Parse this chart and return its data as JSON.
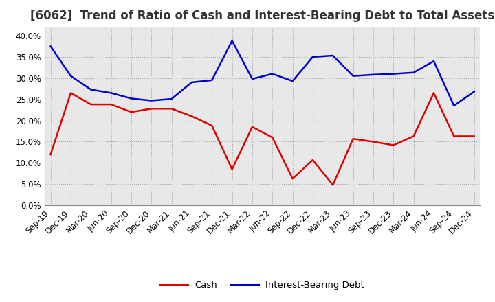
{
  "title": "[6062]  Trend of Ratio of Cash and Interest-Bearing Debt to Total Assets",
  "x_labels": [
    "Sep-19",
    "Dec-19",
    "Mar-20",
    "Jun-20",
    "Sep-20",
    "Dec-20",
    "Mar-21",
    "Jun-21",
    "Sep-21",
    "Dec-21",
    "Mar-22",
    "Jun-22",
    "Sep-22",
    "Dec-22",
    "Mar-23",
    "Jun-23",
    "Sep-23",
    "Dec-23",
    "Mar-24",
    "Jun-24",
    "Sep-24",
    "Dec-24"
  ],
  "cash": [
    0.12,
    0.265,
    0.238,
    0.238,
    0.22,
    0.228,
    0.228,
    0.21,
    0.188,
    0.085,
    0.185,
    0.16,
    0.063,
    0.107,
    0.048,
    0.157,
    0.15,
    0.142,
    0.163,
    0.265,
    0.163,
    0.163
  ],
  "ibd": [
    0.375,
    0.305,
    0.273,
    0.265,
    0.252,
    0.247,
    0.251,
    0.29,
    0.295,
    0.388,
    0.298,
    0.31,
    0.293,
    0.35,
    0.353,
    0.305,
    0.308,
    0.31,
    0.313,
    0.34,
    0.235,
    0.268
  ],
  "cash_color": "#dd0000",
  "ibd_color": "#0000cc",
  "ylim": [
    0.0,
    0.42
  ],
  "yticks": [
    0.0,
    0.05,
    0.1,
    0.15,
    0.2,
    0.25,
    0.3,
    0.35,
    0.4
  ],
  "grid_color": "#aaaaaa",
  "plot_bg_color": "#e8e8e8",
  "fig_bg_color": "#ffffff",
  "legend_cash": "Cash",
  "legend_ibd": "Interest-Bearing Debt",
  "title_fontsize": 12,
  "title_color": "#333333",
  "axis_fontsize": 8.5,
  "legend_fontsize": 9.5,
  "line_width": 1.8
}
